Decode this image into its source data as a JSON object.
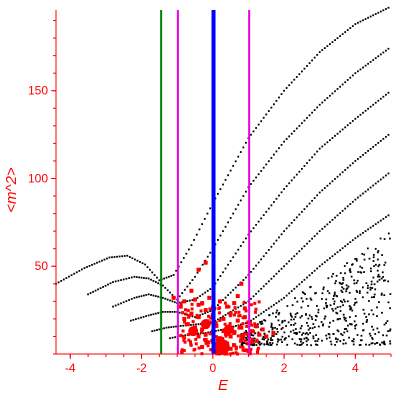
{
  "chart_data": {
    "type": "scatter",
    "xlabel": "E",
    "ylabel": "<m^2>",
    "xlim": [
      -4.4,
      5.0
    ],
    "ylim": [
      0,
      196
    ],
    "x_ticks": [
      "-4",
      "-2",
      "0",
      "2",
      "4"
    ],
    "x_tick_values": [
      -4,
      -2,
      0,
      2,
      4
    ],
    "y_ticks": [
      "50",
      "100",
      "150"
    ],
    "y_tick_values": [
      50,
      100,
      150
    ],
    "grid": false,
    "colors": {
      "axis": "#ff0000",
      "black_series": "#000000",
      "red_series": "#ff0000",
      "line_green": "#008000",
      "line_magenta": "#e600e6",
      "line_blue": "#0000ff"
    },
    "vertical_lines": [
      {
        "x": -1.45,
        "color": "#008000",
        "width": "thin"
      },
      {
        "x": -0.98,
        "color": "#e600e6",
        "width": "thin"
      },
      {
        "x": 0.02,
        "color": "#0000ff",
        "width": "thick"
      },
      {
        "x": 1.02,
        "color": "#e600e6",
        "width": "thin"
      }
    ],
    "black_curves": [
      {
        "points": [
          [
            -4.4,
            40
          ],
          [
            -3.6,
            49
          ],
          [
            -2.9,
            55
          ],
          [
            -2.4,
            56
          ],
          [
            -1.9,
            51
          ],
          [
            -1.5,
            42
          ],
          [
            -1.1,
            45
          ],
          [
            -0.6,
            62
          ],
          [
            0.0,
            86
          ],
          [
            1.0,
            123
          ],
          [
            2.0,
            150
          ],
          [
            3.0,
            172
          ],
          [
            4.0,
            188
          ],
          [
            5.0,
            198
          ]
        ]
      },
      {
        "points": [
          [
            -3.5,
            34
          ],
          [
            -2.8,
            41
          ],
          [
            -2.2,
            44
          ],
          [
            -1.8,
            43
          ],
          [
            -1.4,
            39
          ],
          [
            -1.0,
            31
          ],
          [
            -0.5,
            44
          ],
          [
            0.0,
            60
          ],
          [
            1.0,
            95
          ],
          [
            2.0,
            121
          ],
          [
            3.0,
            142
          ],
          [
            4.0,
            160
          ],
          [
            5.0,
            175
          ]
        ]
      },
      {
        "points": [
          [
            -2.8,
            27
          ],
          [
            -2.2,
            32
          ],
          [
            -1.8,
            34
          ],
          [
            -1.4,
            32
          ],
          [
            -1.0,
            29
          ],
          [
            -0.5,
            31
          ],
          [
            0.0,
            38
          ],
          [
            1.0,
            68
          ],
          [
            2.0,
            94
          ],
          [
            3.0,
            117
          ],
          [
            4.0,
            134
          ],
          [
            5.0,
            150
          ]
        ]
      },
      {
        "points": [
          [
            -2.3,
            19
          ],
          [
            -1.8,
            22
          ],
          [
            -1.4,
            24
          ],
          [
            -1.0,
            24
          ],
          [
            -0.5,
            21
          ],
          [
            0.0,
            25
          ],
          [
            1.0,
            45
          ],
          [
            2.0,
            70
          ],
          [
            3.0,
            92
          ],
          [
            4.0,
            110
          ],
          [
            5.0,
            126
          ]
        ]
      },
      {
        "points": [
          [
            -1.7,
            13
          ],
          [
            -1.3,
            15
          ],
          [
            -0.9,
            16
          ],
          [
            -0.4,
            17
          ],
          [
            0.0,
            18
          ],
          [
            1.0,
            30
          ],
          [
            2.0,
            50
          ],
          [
            3.0,
            70
          ],
          [
            4.0,
            88
          ],
          [
            5.0,
            104
          ]
        ]
      },
      {
        "points": [
          [
            -1.2,
            9
          ],
          [
            -0.7,
            11
          ],
          [
            -0.2,
            12
          ],
          [
            0.3,
            14
          ],
          [
            1.0,
            18
          ],
          [
            2.0,
            32
          ],
          [
            3.0,
            50
          ],
          [
            4.0,
            66
          ],
          [
            5.0,
            80
          ]
        ]
      }
    ],
    "black_scatter_region": {
      "x_range": [
        0.8,
        5.0
      ],
      "y_range": [
        5,
        70
      ]
    },
    "red_points": [
      [
        -0.8,
        30
      ],
      [
        -0.5,
        31
      ],
      [
        -0.3,
        29
      ],
      [
        -0.1,
        32
      ],
      [
        0.2,
        30
      ],
      [
        0.4,
        27
      ],
      [
        0.6,
        29
      ],
      [
        0.9,
        26
      ],
      [
        -0.6,
        23
      ],
      [
        -0.4,
        21
      ],
      [
        -0.2,
        25
      ],
      [
        0.0,
        22
      ],
      [
        0.3,
        20
      ],
      [
        0.5,
        23
      ],
      [
        0.7,
        19
      ],
      [
        1.0,
        18
      ],
      [
        -0.7,
        17
      ],
      [
        -0.5,
        15
      ],
      [
        -0.3,
        14
      ],
      [
        -0.1,
        18
      ],
      [
        0.1,
        16
      ],
      [
        0.3,
        13
      ],
      [
        0.6,
        12
      ],
      [
        0.8,
        15
      ],
      [
        1.1,
        13
      ],
      [
        1.3,
        11
      ],
      [
        1.5,
        10
      ],
      [
        1.7,
        12
      ],
      [
        -0.4,
        10
      ],
      [
        -0.2,
        8
      ],
      [
        0.0,
        7
      ],
      [
        0.2,
        9
      ],
      [
        0.4,
        6
      ],
      [
        0.6,
        5
      ],
      [
        0.8,
        8
      ],
      [
        1.0,
        6
      ],
      [
        -0.3,
        4
      ],
      [
        0.1,
        3
      ],
      [
        0.3,
        2
      ],
      [
        0.5,
        3
      ],
      [
        -0.6,
        13
      ],
      [
        -0.2,
        11
      ],
      [
        0.15,
        4
      ],
      [
        0.25,
        5
      ],
      [
        0.35,
        3
      ],
      [
        0.05,
        2
      ],
      [
        -0.9,
        27
      ],
      [
        1.2,
        16
      ],
      [
        -1.1,
        32
      ],
      [
        0.7,
        33
      ],
      [
        -0.4,
        28
      ],
      [
        0.5,
        10
      ],
      [
        0.9,
        21
      ],
      [
        1.4,
        14
      ],
      [
        -0.8,
        20
      ],
      [
        0.0,
        26
      ],
      [
        -0.2,
        52
      ],
      [
        -0.4,
        48
      ],
      [
        -0.6,
        36
      ],
      [
        0.8,
        40
      ]
    ],
    "red_blobs": [
      {
        "x": 0.25,
        "y": 4,
        "size": "large"
      },
      {
        "x": -0.2,
        "y": 17,
        "size": "medium"
      },
      {
        "x": 0.45,
        "y": 14,
        "size": "medium"
      },
      {
        "x": -0.55,
        "y": 13,
        "size": "medium"
      }
    ]
  }
}
